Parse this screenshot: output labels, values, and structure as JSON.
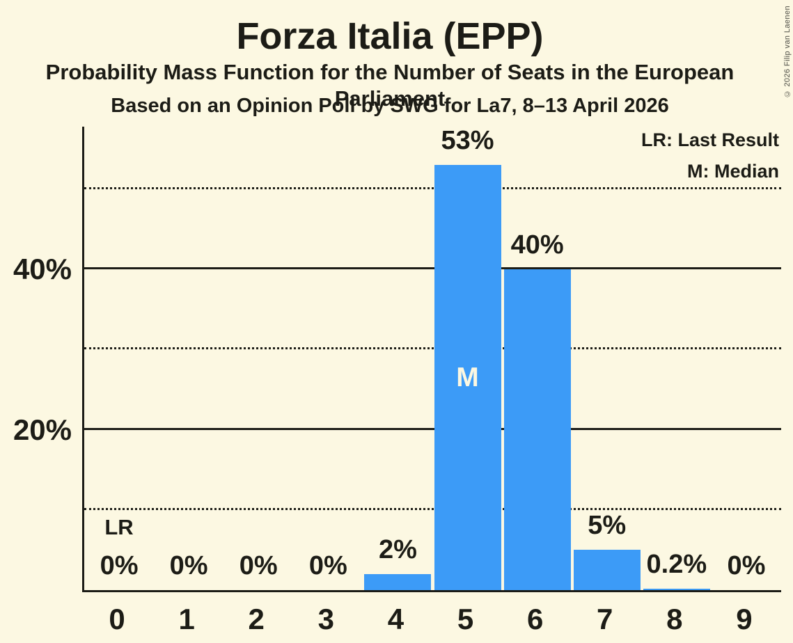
{
  "page": {
    "title": "Forza Italia (EPP)",
    "subtitle": "Probability Mass Function for the Number of Seats in the European Parliament",
    "poll_line": "Based on an Opinion Poll by SWG for La7, 8–13 April 2026",
    "copyright": "© 2026 Filip van Laenen"
  },
  "legend": {
    "last_result": "LR: Last Result",
    "median": "M: Median",
    "position": "top-right"
  },
  "colors": {
    "background": "#FCF8E2",
    "bar": "#3C9BF7",
    "text": "#1C1C16",
    "median_text": "#FCF8E2",
    "copyright_text": "#4E4E46"
  },
  "chart_data": {
    "type": "bar",
    "title": "Forza Italia (EPP)",
    "categories": [
      "0",
      "1",
      "2",
      "3",
      "4",
      "5",
      "6",
      "7",
      "8",
      "9"
    ],
    "values": [
      0,
      0,
      0,
      0,
      2,
      53,
      40,
      5,
      0.2,
      0
    ],
    "bar_labels": [
      "0%",
      "0%",
      "0%",
      "0%",
      "2%",
      "53%",
      "40%",
      "5%",
      "0.2%",
      "0%"
    ],
    "ylim": [
      0,
      57.8
    ],
    "yticks": [
      {
        "value": 20,
        "label": "20%"
      },
      {
        "value": 40,
        "label": "40%"
      }
    ],
    "gridlines_solid_pct": [
      20,
      40
    ],
    "gridlines_dotted_pct": [
      10,
      30,
      50
    ],
    "grid": true,
    "annotations": {
      "last_result_seat": 0,
      "last_result_marker": "LR",
      "median_seat": 5,
      "median_marker": "M"
    }
  }
}
